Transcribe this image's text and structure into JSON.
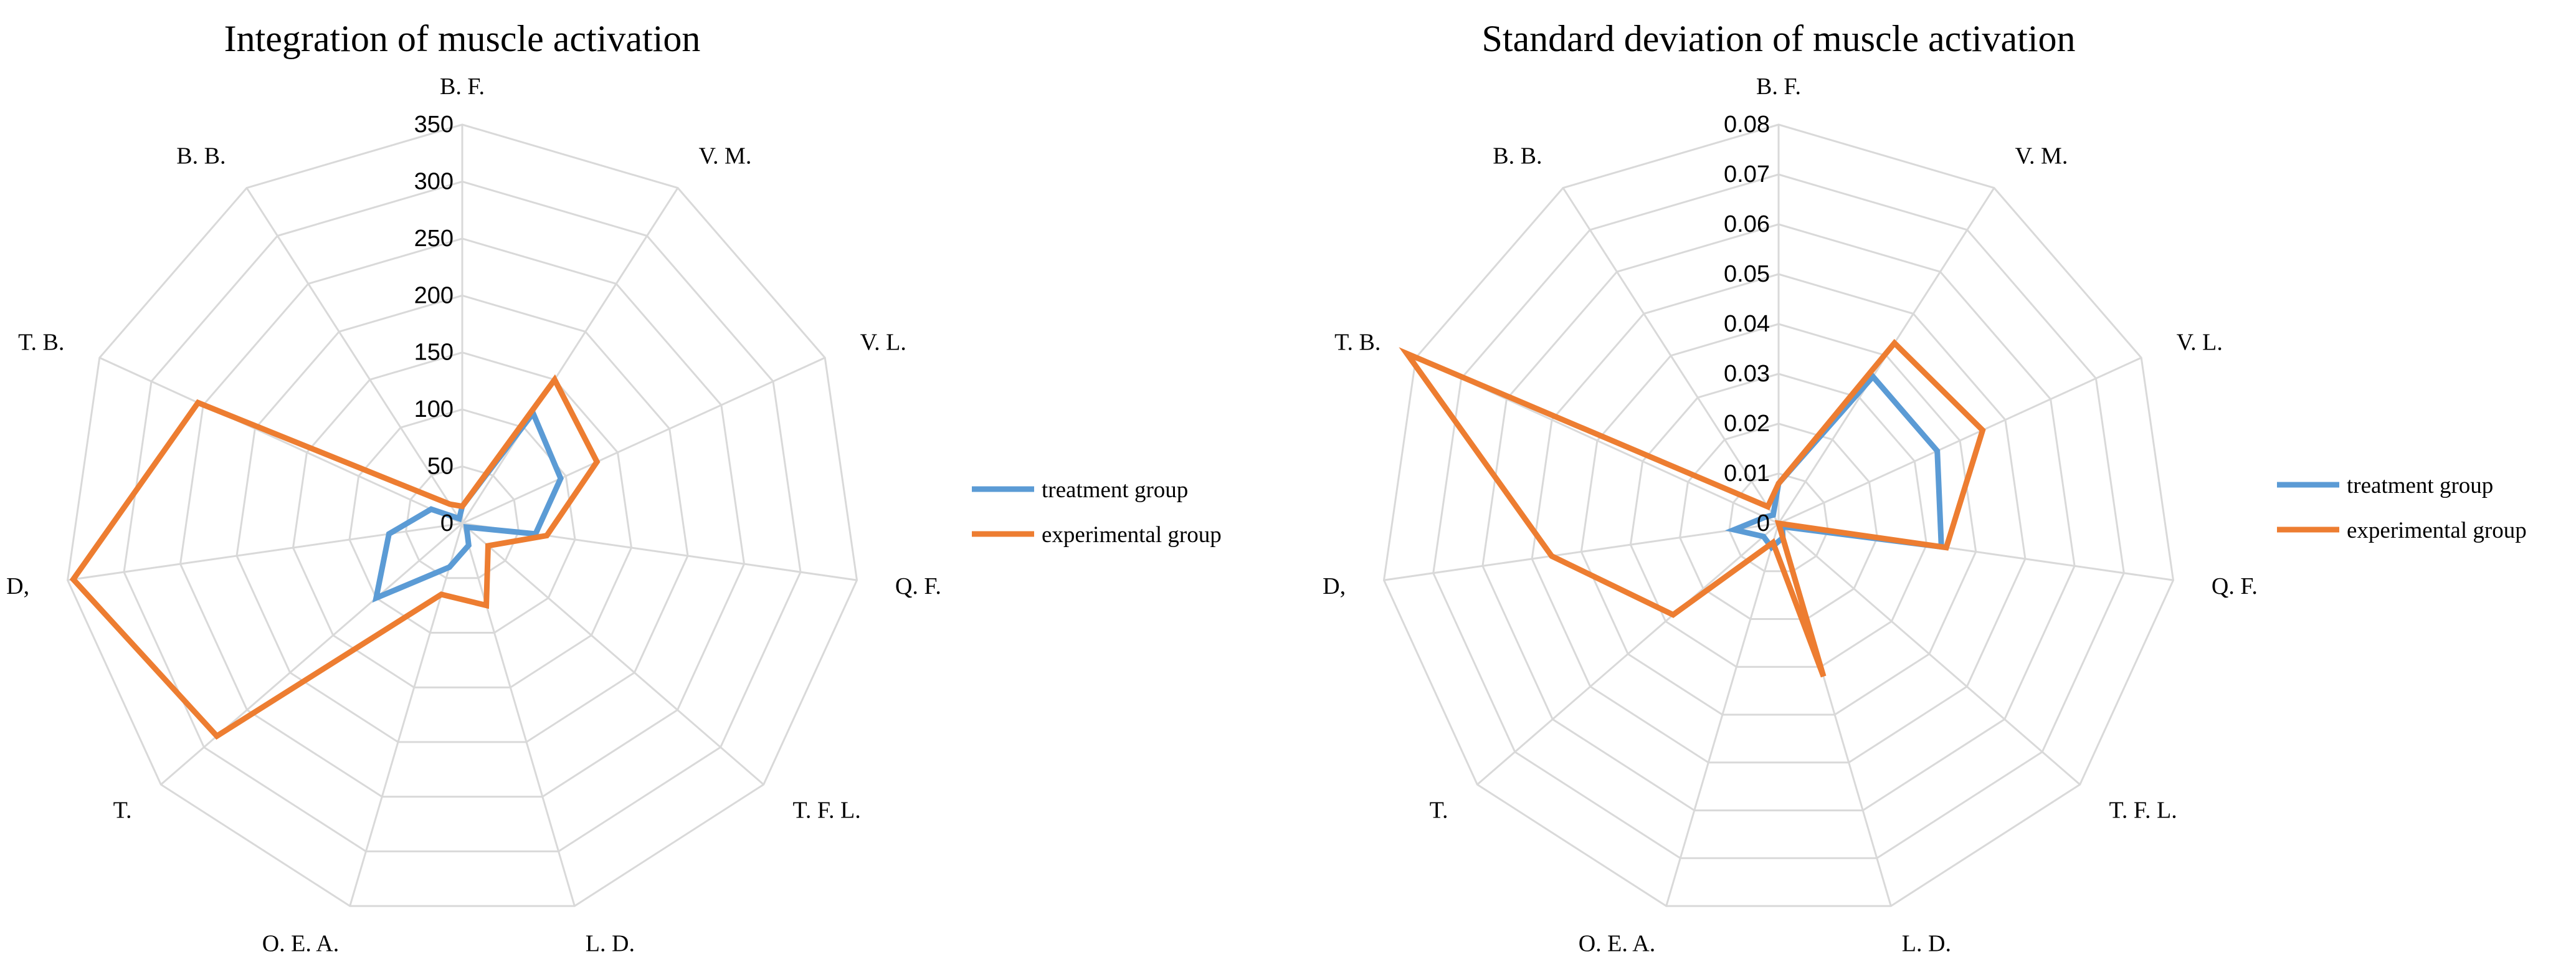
{
  "chart_data": [
    {
      "type": "radar",
      "title": "Integration of muscle activation",
      "categories": [
        "B. F.",
        "V. M.",
        "V. L.",
        "Q. F.",
        "T. F. L.",
        "L. D.",
        "O. E. A.",
        "T.",
        "D,",
        "T. B.",
        "B. B."
      ],
      "ticks": [
        "0",
        "50",
        "100",
        "150",
        "200",
        "250",
        "300",
        "350"
      ],
      "rlim": [
        0,
        350
      ],
      "legend_position": "right",
      "series": [
        {
          "name": "treatment group",
          "color": "#5b9bd5",
          "values": [
            15,
            115,
            95,
            65,
            5,
            20,
            40,
            100,
            65,
            30,
            5
          ]
        },
        {
          "name": "experimental group",
          "color": "#ed7d31",
          "values": [
            15,
            150,
            130,
            75,
            30,
            75,
            65,
            285,
            345,
            255,
            20
          ]
        }
      ]
    },
    {
      "type": "radar",
      "title": "Standard deviation of muscle activation",
      "categories": [
        "B. F.",
        "V. M.",
        "V. L.",
        "Q. F.",
        "T. F. L.",
        "L. D.",
        "O. E. A.",
        "T.",
        "D,",
        "T. B.",
        "B. B."
      ],
      "ticks": [
        "0",
        "0.01",
        "0.02",
        "0.03",
        "0.04",
        "0.05",
        "0.06",
        "0.07",
        "0.08"
      ],
      "rlim": [
        0,
        0.08
      ],
      "legend_position": "right",
      "series": [
        {
          "name": "treatment group",
          "color": "#5b9bd5",
          "values": [
            0.008,
            0.035,
            0.035,
            0.033,
            0.001,
            0.003,
            0.005,
            0.004,
            0.009,
            0.003,
            0.002
          ]
        },
        {
          "name": "experimental group",
          "color": "#ed7d31",
          "values": [
            0.008,
            0.043,
            0.045,
            0.034,
            0.0,
            0.032,
            0.004,
            0.028,
            0.046,
            0.082,
            0.004
          ]
        }
      ]
    }
  ]
}
